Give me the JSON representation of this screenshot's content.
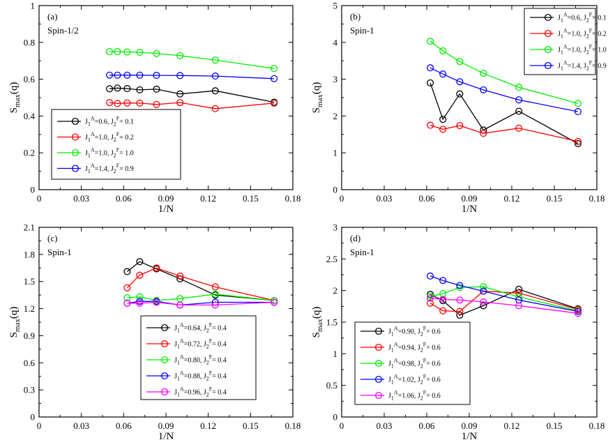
{
  "figure": {
    "title": ""
  },
  "chart_data": [
    {
      "type": "line",
      "tag": "(a)",
      "spin": "Spin-1/2",
      "xlabel": "1/N",
      "ylabel": "S_max(q)",
      "xlim": [
        0,
        0.18
      ],
      "ylim": [
        0,
        1
      ],
      "xticks": [
        "0",
        "0.03",
        "0.06",
        "0.09",
        "0.12",
        "0.15",
        "0.18"
      ],
      "yticks": [
        "0",
        "0.2",
        "0.4",
        "0.6",
        "0.8",
        "1"
      ],
      "series": [
        {
          "name": "J1A=0.6, J2F=0.1",
          "color": "#000000",
          "x": [
            0.05,
            0.0556,
            0.0625,
            0.0714,
            0.0833,
            0.1,
            0.125,
            0.1667
          ],
          "y": [
            0.548,
            0.552,
            0.549,
            0.542,
            0.546,
            0.52,
            0.537,
            0.475
          ]
        },
        {
          "name": "J1A=1.0, J2F=0.2",
          "color": "#ff0000",
          "x": [
            0.05,
            0.0556,
            0.0625,
            0.0714,
            0.0833,
            0.1,
            0.125,
            0.1667
          ],
          "y": [
            0.473,
            0.468,
            0.471,
            0.47,
            0.463,
            0.473,
            0.44,
            0.47
          ]
        },
        {
          "name": "J1A=1.0, J2F=1.0",
          "color": "#00ee00",
          "x": [
            0.05,
            0.0556,
            0.0625,
            0.0714,
            0.0833,
            0.1,
            0.125,
            0.1667
          ],
          "y": [
            0.75,
            0.75,
            0.748,
            0.746,
            0.74,
            0.728,
            0.704,
            0.658
          ]
        },
        {
          "name": "J1A=1.4, J2F=0.9",
          "color": "#0000ff",
          "x": [
            0.05,
            0.0556,
            0.0625,
            0.0714,
            0.0833,
            0.1,
            0.125,
            0.1667
          ],
          "y": [
            0.622,
            0.622,
            0.622,
            0.622,
            0.621,
            0.62,
            0.617,
            0.603
          ]
        }
      ],
      "legend": [
        {
          "j1": "0.6",
          "j2": "0.1"
        },
        {
          "j1": "1.0",
          "j2": "0.2"
        },
        {
          "j1": "1.0",
          "j2": "1.0"
        },
        {
          "j1": "1.4",
          "j2": "0.9"
        }
      ]
    },
    {
      "type": "line",
      "tag": "(b)",
      "spin": "Spin-1",
      "xlabel": "1/N",
      "ylabel": "S_max(q)",
      "xlim": [
        0,
        0.18
      ],
      "ylim": [
        0,
        5
      ],
      "xticks": [
        "0",
        "0.03",
        "0.06",
        "0.09",
        "0.12",
        "0.15",
        "0.18"
      ],
      "yticks": [
        "0",
        "1",
        "2",
        "3",
        "4",
        "5"
      ],
      "series": [
        {
          "name": "J1A=0.6, J2F=0.1",
          "color": "#000000",
          "x": [
            0.0625,
            0.0714,
            0.0833,
            0.1,
            0.125,
            0.1667
          ],
          "y": [
            2.9,
            1.91,
            2.6,
            1.62,
            2.13,
            1.25
          ]
        },
        {
          "name": "J1A=1.0, J2F=0.2",
          "color": "#ff0000",
          "x": [
            0.0625,
            0.0714,
            0.0833,
            0.1,
            0.125,
            0.1667
          ],
          "y": [
            1.75,
            1.64,
            1.74,
            1.53,
            1.67,
            1.31
          ]
        },
        {
          "name": "J1A=1.0, J2F=1.0",
          "color": "#00ee00",
          "x": [
            0.0625,
            0.0714,
            0.0833,
            0.1,
            0.125,
            0.1667
          ],
          "y": [
            4.03,
            3.77,
            3.48,
            3.16,
            2.78,
            2.34
          ]
        },
        {
          "name": "J1A=1.4, J2F=0.9",
          "color": "#0000ff",
          "x": [
            0.0625,
            0.0714,
            0.0833,
            0.1,
            0.125,
            0.1667
          ],
          "y": [
            3.31,
            3.14,
            2.93,
            2.71,
            2.44,
            2.12
          ]
        }
      ],
      "legend": [
        {
          "j1": "0.6",
          "j2": "0.1"
        },
        {
          "j1": "1.0",
          "j2": "0.2"
        },
        {
          "j1": "1.0",
          "j2": "1.0"
        },
        {
          "j1": "1.4",
          "j2": "0.9"
        }
      ]
    },
    {
      "type": "line",
      "tag": "(c)",
      "spin": "Spin-1",
      "xlabel": "1/N",
      "ylabel": "S_max(q)",
      "xlim": [
        0,
        0.18
      ],
      "ylim": [
        0,
        2.1
      ],
      "xticks": [
        "0",
        "0.03",
        "0.06",
        "0.09",
        "0.12",
        "0.15",
        "0.18"
      ],
      "yticks": [
        "0",
        "0.3",
        "0.6",
        "0.9",
        "1.2",
        "1.5",
        "1.8",
        "2.1"
      ],
      "series": [
        {
          "name": "J1A=0.64, J2F=0.4",
          "color": "#000000",
          "x": [
            0.0625,
            0.0714,
            0.0833,
            0.1,
            0.125,
            0.1667
          ],
          "y": [
            1.61,
            1.72,
            1.64,
            1.53,
            1.35,
            1.29
          ]
        },
        {
          "name": "J1A=0.72, J2F=0.4",
          "color": "#ff0000",
          "x": [
            0.0625,
            0.0714,
            0.0833,
            0.1,
            0.125,
            0.1667
          ],
          "y": [
            1.43,
            1.57,
            1.65,
            1.56,
            1.44,
            1.29
          ]
        },
        {
          "name": "J1A=0.80, J2F=0.4",
          "color": "#00ee00",
          "x": [
            0.0625,
            0.0714,
            0.0833,
            0.1,
            0.125,
            0.1667
          ],
          "y": [
            1.32,
            1.33,
            1.29,
            1.31,
            1.36,
            1.29
          ]
        },
        {
          "name": "J1A=0.88, J2F=0.4",
          "color": "#0000ff",
          "x": [
            0.0625,
            0.0714,
            0.0833,
            0.1,
            0.125,
            0.1667
          ],
          "y": [
            1.26,
            1.28,
            1.28,
            1.24,
            1.27,
            1.27
          ]
        },
        {
          "name": "J1A=0.96, J2F=0.4",
          "color": "#ff00ff",
          "x": [
            0.0625,
            0.0714,
            0.0833,
            0.1,
            0.125,
            0.1667
          ],
          "y": [
            1.26,
            1.26,
            1.27,
            1.24,
            1.24,
            1.27
          ]
        }
      ],
      "legend": [
        {
          "j1": "0.64",
          "j2": "0.4"
        },
        {
          "j1": "0.72",
          "j2": "0.4"
        },
        {
          "j1": "0.80",
          "j2": "0.4"
        },
        {
          "j1": "0.88",
          "j2": "0.4"
        },
        {
          "j1": "0.96",
          "j2": "0.4"
        }
      ]
    },
    {
      "type": "line",
      "tag": "(d)",
      "spin": "Spin-1",
      "xlabel": "1/N",
      "ylabel": "S_max(q)",
      "xlim": [
        0,
        0.18
      ],
      "ylim": [
        0,
        3
      ],
      "xticks": [
        "0",
        "0.03",
        "0.06",
        "0.09",
        "0.12",
        "0.15",
        "0.18"
      ],
      "yticks": [
        "0",
        "0.5",
        "1",
        "1.5",
        "2",
        "2.5",
        "3"
      ],
      "series": [
        {
          "name": "J1A=0.90, J2F=0.6",
          "color": "#000000",
          "x": [
            0.0625,
            0.0714,
            0.0833,
            0.1,
            0.125,
            0.1667
          ],
          "y": [
            1.94,
            1.84,
            1.61,
            1.76,
            2.02,
            1.71
          ]
        },
        {
          "name": "J1A=0.94, J2F=0.6",
          "color": "#ff0000",
          "x": [
            0.0625,
            0.0714,
            0.0833,
            0.1,
            0.125,
            0.1667
          ],
          "y": [
            1.8,
            1.68,
            1.67,
            1.99,
            1.96,
            1.7
          ]
        },
        {
          "name": "J1A=0.98, J2F=0.6",
          "color": "#00ee00",
          "x": [
            0.0625,
            0.0714,
            0.0833,
            0.1,
            0.125,
            0.1667
          ],
          "y": [
            1.91,
            1.95,
            2.05,
            2.06,
            1.9,
            1.68
          ]
        },
        {
          "name": "J1A=1.02, J2F=0.6",
          "color": "#0000ff",
          "x": [
            0.0625,
            0.0714,
            0.0833,
            0.1,
            0.125,
            0.1667
          ],
          "y": [
            2.23,
            2.16,
            2.08,
            1.99,
            1.85,
            1.67
          ]
        },
        {
          "name": "J1A=1.06, J2F=0.6",
          "color": "#ff00ff",
          "x": [
            0.0625,
            0.0714,
            0.0833,
            0.1,
            0.125,
            0.1667
          ],
          "y": [
            1.88,
            1.86,
            1.85,
            1.82,
            1.76,
            1.64
          ]
        }
      ],
      "legend": [
        {
          "j1": "0.90",
          "j2": "0.6"
        },
        {
          "j1": "0.94",
          "j2": "0.6"
        },
        {
          "j1": "0.98",
          "j2": "0.6"
        },
        {
          "j1": "1.02",
          "j2": "0.6"
        },
        {
          "j1": "1.06",
          "j2": "0.6"
        }
      ]
    }
  ]
}
